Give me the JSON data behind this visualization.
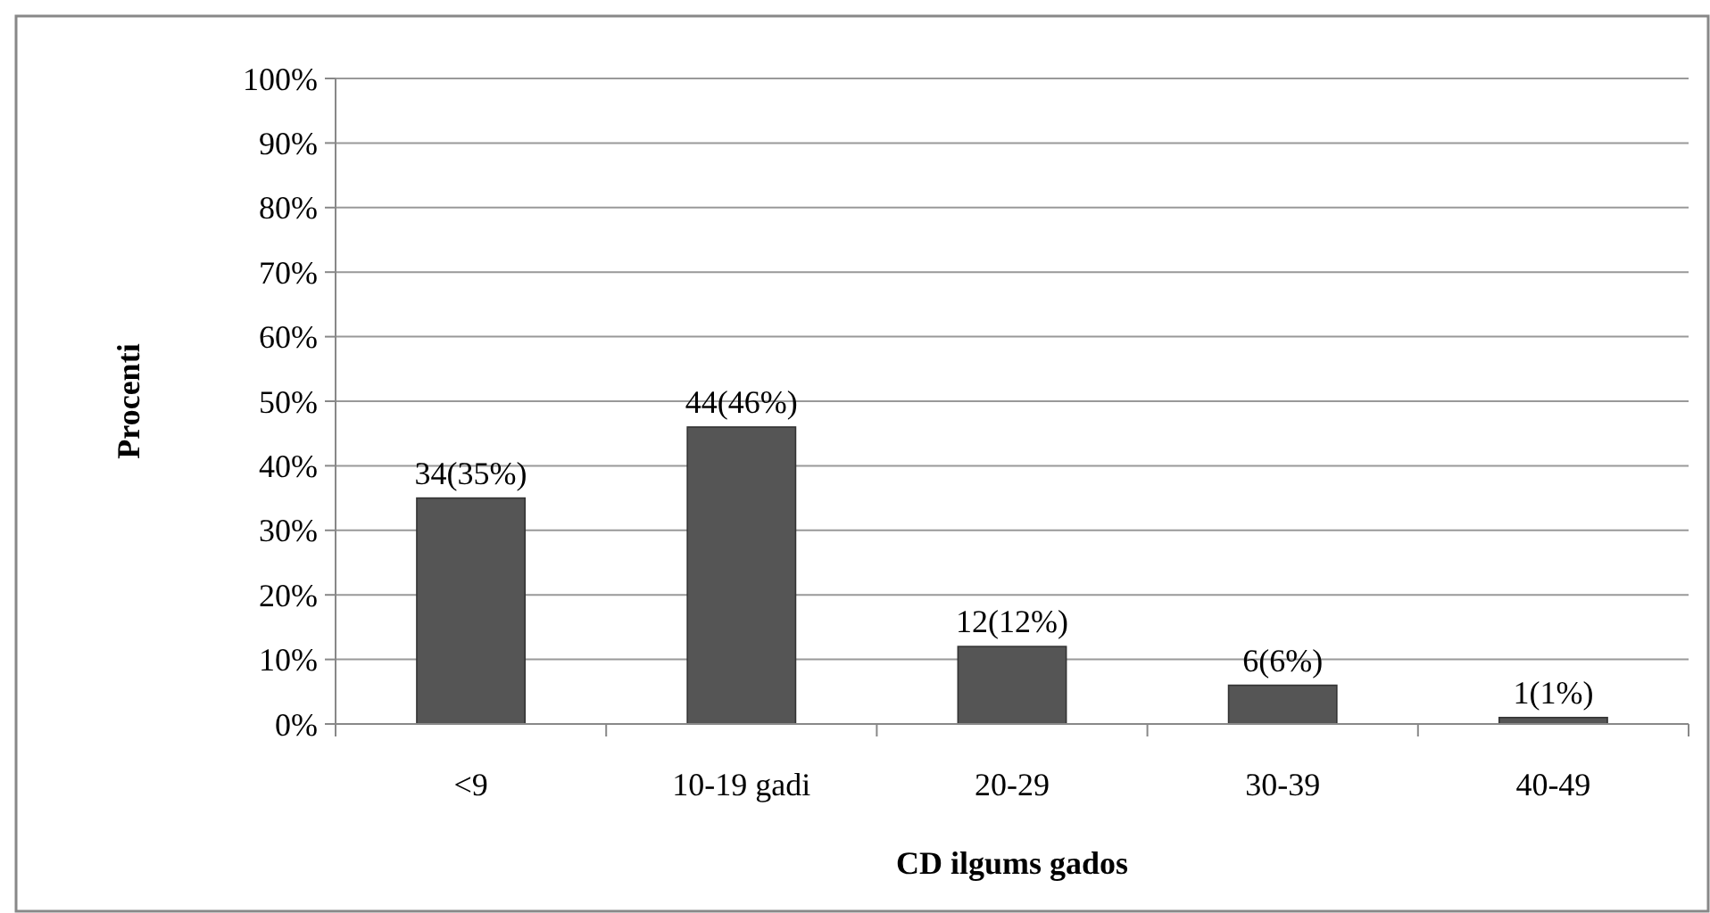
{
  "chart_data": {
    "type": "bar",
    "xlabel": "CD ilgums gados",
    "ylabel": "Procenti",
    "categories": [
      "<9",
      "10-19 gadi",
      "20-29",
      "30-39",
      "40-49"
    ],
    "values": [
      35,
      46,
      12,
      6,
      1
    ],
    "color": "#555555",
    "value_labels": [
      "34(35%)",
      "44(46%)",
      "12(12%)",
      "6(6%)",
      "1(1%)"
    ],
    "ylim": [
      0,
      100
    ],
    "yticks": [
      {
        "value": 0,
        "label": "0%"
      },
      {
        "value": 10,
        "label": "10%"
      },
      {
        "value": 20,
        "label": "20%"
      },
      {
        "value": 30,
        "label": "30%"
      },
      {
        "value": 40,
        "label": "40%"
      },
      {
        "value": 50,
        "label": "50%"
      },
      {
        "value": 60,
        "label": "60%"
      },
      {
        "value": 70,
        "label": "70%"
      },
      {
        "value": 80,
        "label": "80%"
      },
      {
        "value": 90,
        "label": "90%"
      },
      {
        "value": 100,
        "label": "100%"
      }
    ],
    "grid": "y"
  }
}
